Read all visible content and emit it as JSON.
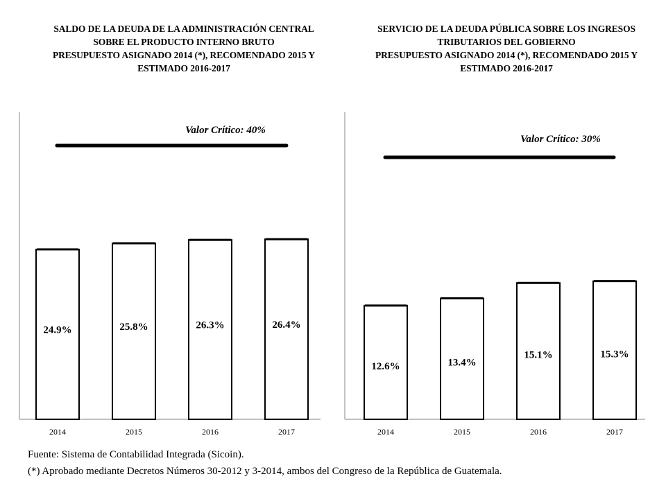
{
  "chart_data": [
    {
      "type": "bar",
      "title": [
        "SALDO DE LA DEUDA DE LA ADMINISTRACIÓN CENTRAL",
        "SOBRE EL PRODUCTO INTERNO BRUTO",
        "PRESUPUESTO ASIGNADO 2014 (*), RECOMENDADO 2015 Y",
        "ESTIMADO 2016-2017"
      ],
      "categories": [
        "2014",
        "2015",
        "2016",
        "2017"
      ],
      "values": [
        24.9,
        25.8,
        26.3,
        26.4
      ],
      "value_labels": [
        "24.9%",
        "25.8%",
        "26.3%",
        "26.4%"
      ],
      "reference": {
        "label": "Valor Crítico: 40%",
        "value": 40
      },
      "ylim": [
        0,
        45
      ],
      "xlabel": "",
      "ylabel": "",
      "grid": false
    },
    {
      "type": "bar",
      "title": [
        "SERVICIO DE LA DEUDA PÚBLICA SOBRE LOS INGRESOS",
        "TRIBUTARIOS DEL GOBIERNO",
        "PRESUPUESTO ASIGNADO 2014 (*), RECOMENDADO 2015 Y",
        "ESTIMADO 2016-2017"
      ],
      "categories": [
        "2014",
        "2015",
        "2016",
        "2017"
      ],
      "values": [
        12.6,
        13.4,
        15.1,
        15.3
      ],
      "value_labels": [
        "12.6%",
        "13.4%",
        "15.1%",
        "15.3%"
      ],
      "reference": {
        "label": "Valor Crítico: 30%",
        "value": 30
      },
      "ylim": [
        0,
        34
      ],
      "xlabel": "",
      "ylabel": "",
      "grid": false
    }
  ],
  "footnotes": {
    "source": "Fuente: Sistema de Contabilidad Integrada (Sicoin).",
    "note": "(*) Aprobado mediante Decretos Números 30-2012 y 3-2014, ambos del Congreso de la República de Guatemala."
  }
}
